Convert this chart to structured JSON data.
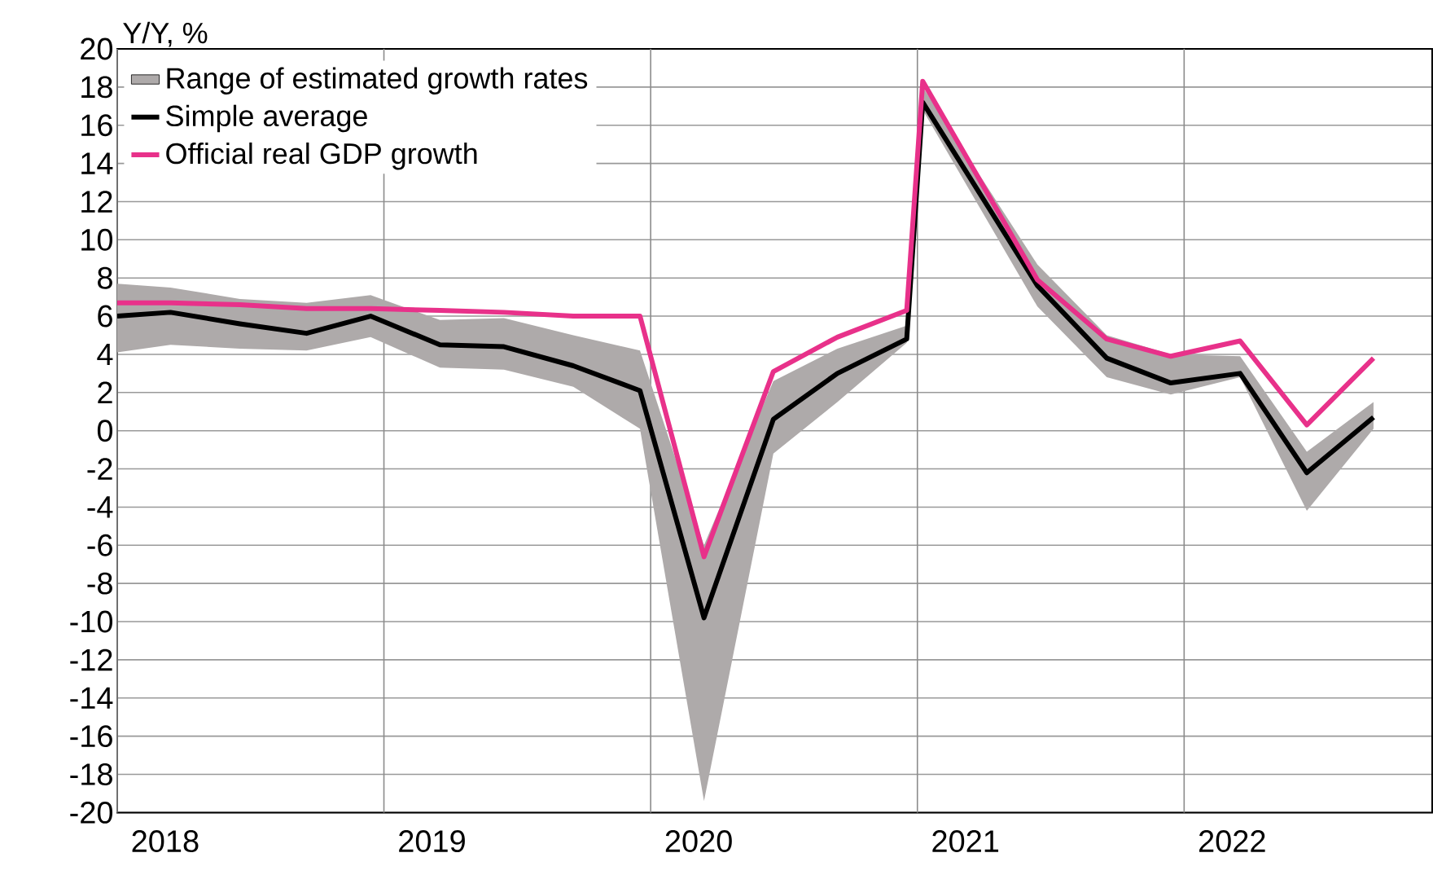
{
  "chart_data": {
    "type": "line",
    "ylabel": "Y/Y, %",
    "x": [
      2018.0,
      2018.2,
      2018.46,
      2018.71,
      2018.95,
      2019.21,
      2019.45,
      2019.71,
      2019.96,
      2020.2,
      2020.46,
      2020.7,
      2020.96,
      2021.02,
      2021.45,
      2021.71,
      2021.95,
      2022.21,
      2022.46,
      2022.71
    ],
    "series": [
      {
        "name": "Range of estimated growth rates",
        "type": "area",
        "color": "#aeaaaa",
        "values": [
          null,
          null,
          null,
          null,
          null,
          null,
          null,
          null,
          null,
          null,
          null,
          null,
          null,
          null,
          null,
          null,
          null,
          null,
          null,
          null
        ],
        "lower": [
          4.1,
          4.5,
          4.3,
          4.2,
          4.9,
          3.3,
          3.2,
          2.3,
          0.1,
          -19.4,
          -1.2,
          1.5,
          4.6,
          16.8,
          6.5,
          2.8,
          1.9,
          2.8,
          -4.2,
          0.1
        ],
        "upper": [
          7.7,
          7.5,
          6.9,
          6.7,
          7.1,
          5.8,
          5.9,
          5.0,
          4.2,
          -6.0,
          2.6,
          4.3,
          5.5,
          18.0,
          8.7,
          5.0,
          4.0,
          3.9,
          -1.1,
          1.5
        ]
      },
      {
        "name": "Simple average",
        "color": "#000000",
        "values": [
          6.0,
          6.2,
          5.6,
          5.1,
          6.0,
          4.5,
          4.4,
          3.4,
          2.1,
          -9.8,
          0.6,
          3.0,
          4.8,
          17.2,
          7.6,
          3.8,
          2.5,
          3.0,
          -2.2,
          0.7
        ]
      },
      {
        "name": "Official real GDP growth",
        "color": "#e8318a",
        "values": [
          6.7,
          6.7,
          6.6,
          6.4,
          6.4,
          6.3,
          6.2,
          6.0,
          6.0,
          -6.6,
          3.1,
          4.9,
          6.3,
          18.3,
          7.9,
          4.8,
          3.9,
          4.7,
          0.3,
          3.8
        ]
      }
    ],
    "xlim": [
      2018.0,
      2022.93
    ],
    "xticks": [
      {
        "value": 2018,
        "label": null
      },
      {
        "value": 2018.18,
        "label": "2018"
      },
      {
        "value": 2019,
        "label": null
      },
      {
        "value": 2019.18,
        "label": "2019"
      },
      {
        "value": 2020,
        "label": null
      },
      {
        "value": 2020.18,
        "label": "2020"
      },
      {
        "value": 2021,
        "label": null
      },
      {
        "value": 2021.18,
        "label": "2021"
      },
      {
        "value": 2022,
        "label": null
      },
      {
        "value": 2022.18,
        "label": "2022"
      }
    ],
    "ylim": [
      -20,
      20
    ],
    "yticks": [
      -20,
      -18,
      -16,
      -14,
      -12,
      -10,
      -8,
      -6,
      -4,
      -2,
      0,
      2,
      4,
      6,
      8,
      10,
      12,
      14,
      16,
      18,
      20
    ],
    "grid": true,
    "legend": "top left"
  }
}
